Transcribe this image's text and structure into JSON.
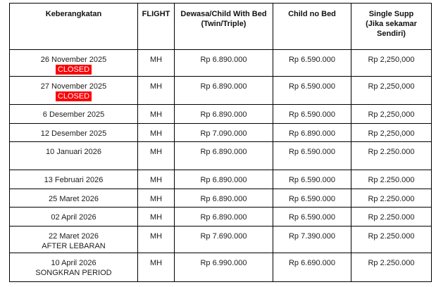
{
  "table": {
    "columns": [
      "Keberangkatan",
      "FLIGHT",
      "Dewasa/Child With Bed\n(Twin/Triple)",
      "Child no Bed",
      "Single Supp\n(Jika sekamar\nSendiri)"
    ],
    "status_color": "#fb0006",
    "rows": [
      {
        "date": "26 November 2025",
        "status": "CLOSED",
        "subtitle": "",
        "flight": "MH",
        "adult_child_with_bed": "Rp 6.890.000",
        "child_no_bed": "Rp 6.590.000",
        "single_supp": "Rp 2,250,000"
      },
      {
        "date": "27 November 2025",
        "status": "CLOSED",
        "subtitle": "",
        "flight": "MH",
        "adult_child_with_bed": "Rp 6.890.000",
        "child_no_bed": "Rp 6.590.000",
        "single_supp": "Rp 2,250,000"
      },
      {
        "date": "6 Desember 2025",
        "status": "",
        "subtitle": "",
        "flight": "MH",
        "adult_child_with_bed": "Rp 6.890.000",
        "child_no_bed": "Rp 6.590.000",
        "single_supp": "Rp 2,250,000"
      },
      {
        "date": "12 Desember 2025",
        "status": "",
        "subtitle": "",
        "flight": "MH",
        "adult_child_with_bed": "Rp 7.090.000",
        "child_no_bed": "Rp 6.890.000",
        "single_supp": "Rp 2,250,000"
      },
      {
        "date": "10 Januari 2026",
        "status": "",
        "subtitle": "",
        "flight": "MH",
        "adult_child_with_bed": "Rp 6.890.000",
        "child_no_bed": "Rp 6.590.000",
        "single_supp": "Rp 2.250.000"
      },
      {
        "date": "13 Februari 2026",
        "status": "",
        "subtitle": "",
        "flight": "MH",
        "adult_child_with_bed": "Rp 6.890.000",
        "child_no_bed": "Rp 6.590.000",
        "single_supp": "Rp 2.250.000"
      },
      {
        "date": "25 Maret 2026",
        "status": "",
        "subtitle": "",
        "flight": "MH",
        "adult_child_with_bed": "Rp 6.890.000",
        "child_no_bed": "Rp 6.590.000",
        "single_supp": "Rp 2.250.000"
      },
      {
        "date": "02 April 2026",
        "status": "",
        "subtitle": "",
        "flight": "MH",
        "adult_child_with_bed": "Rp 6.890.000",
        "child_no_bed": "Rp 6.590.000",
        "single_supp": "Rp 2.250.000"
      },
      {
        "date": "22 Maret 2026",
        "status": "",
        "subtitle": "AFTER LEBARAN",
        "flight": "MH",
        "adult_child_with_bed": "Rp 7.690.000",
        "child_no_bed": "Rp 7.390.000",
        "single_supp": "Rp 2.250.000"
      },
      {
        "date": "10 April 2026",
        "status": "",
        "subtitle": "SONGKRAN PERIOD",
        "flight": "MH",
        "adult_child_with_bed": "Rp 6.990.000",
        "child_no_bed": "Rp 6.690.000",
        "single_supp": "Rp 2.250.000"
      }
    ]
  }
}
